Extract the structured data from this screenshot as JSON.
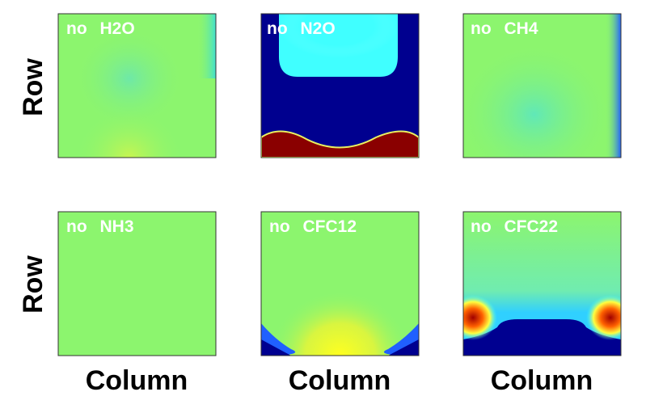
{
  "panels": [
    {
      "label": "no H2O"
    },
    {
      "label": "no N2O"
    },
    {
      "label": "no CH4"
    },
    {
      "label": "no NH3"
    },
    {
      "label": "no CFC12"
    },
    {
      "label": "no CFC22"
    }
  ],
  "row_labels": [
    "Row",
    "Row"
  ],
  "column_labels": [
    "Column",
    "Column",
    "Column"
  ]
}
